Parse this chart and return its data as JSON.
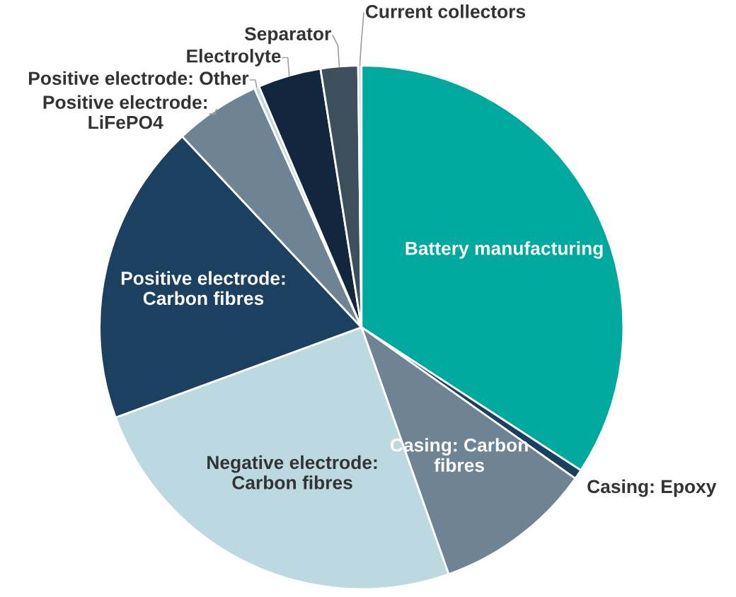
{
  "chart_data": {
    "type": "pie",
    "categories": [
      "Battery manufacturing",
      "Casing: Epoxy",
      "Casing: Carbon\nfibres",
      "Negative electrode:\nCarbon fibres",
      "Positive electrode:\nCarbon fibres",
      "Positive electrode:\nLiFePO4",
      "Positive electrode: Other",
      "Electrolyte",
      "Separator",
      "Current collectors"
    ],
    "values": [
      34.2,
      0.6,
      9.8,
      24.8,
      18.6,
      5.3,
      0.3,
      3.9,
      2.3,
      0.2
    ],
    "colors": [
      "#00a99d",
      "#1b3f5e",
      "#6e8494",
      "#bcd8e0",
      "#1b4060",
      "#6e8494",
      "#bcd8e0",
      "#12273d",
      "#3e4f5c",
      "#bcd8e0"
    ],
    "legend": false
  }
}
